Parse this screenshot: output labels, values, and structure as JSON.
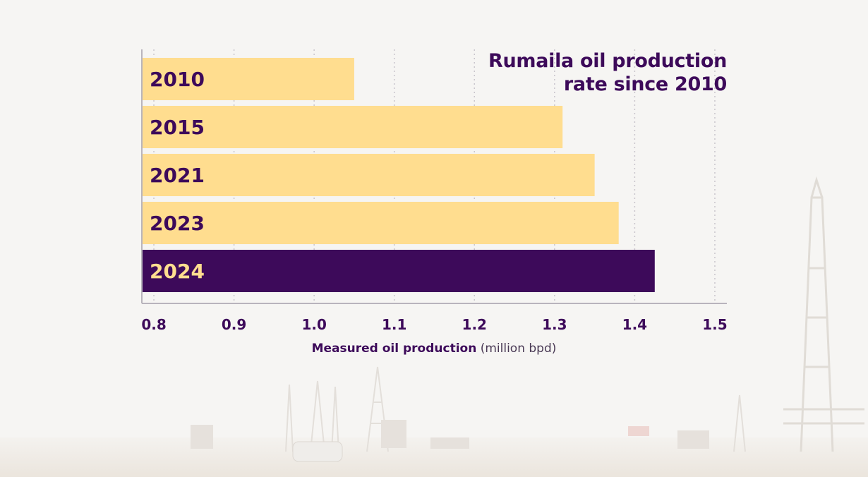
{
  "chart_data": {
    "type": "bar",
    "orientation": "horizontal",
    "title_lines": [
      "Rumaila oil production",
      "rate since 2010"
    ],
    "xlabel_bold": "Measured oil production",
    "xlabel_unit": "(million bpd)",
    "categories": [
      "2010",
      "2015",
      "2021",
      "2023",
      "2024"
    ],
    "values": [
      1.05,
      1.31,
      1.35,
      1.38,
      1.425
    ],
    "highlight": "2024",
    "xlim": [
      0.785,
      1.515
    ],
    "xticks": [
      "0.8",
      "0.9",
      "1.0",
      "1.1",
      "1.2",
      "1.3",
      "1.4",
      "1.5"
    ],
    "grid": "vertical-dotted",
    "colors": {
      "bar": "#ffdd8f",
      "highlight": "#3d0a5a",
      "label_dark": "#3d0a5a",
      "label_light": "#ffdd8f",
      "grid": "#c9c5cc",
      "axis": "#b8b4bc"
    }
  }
}
